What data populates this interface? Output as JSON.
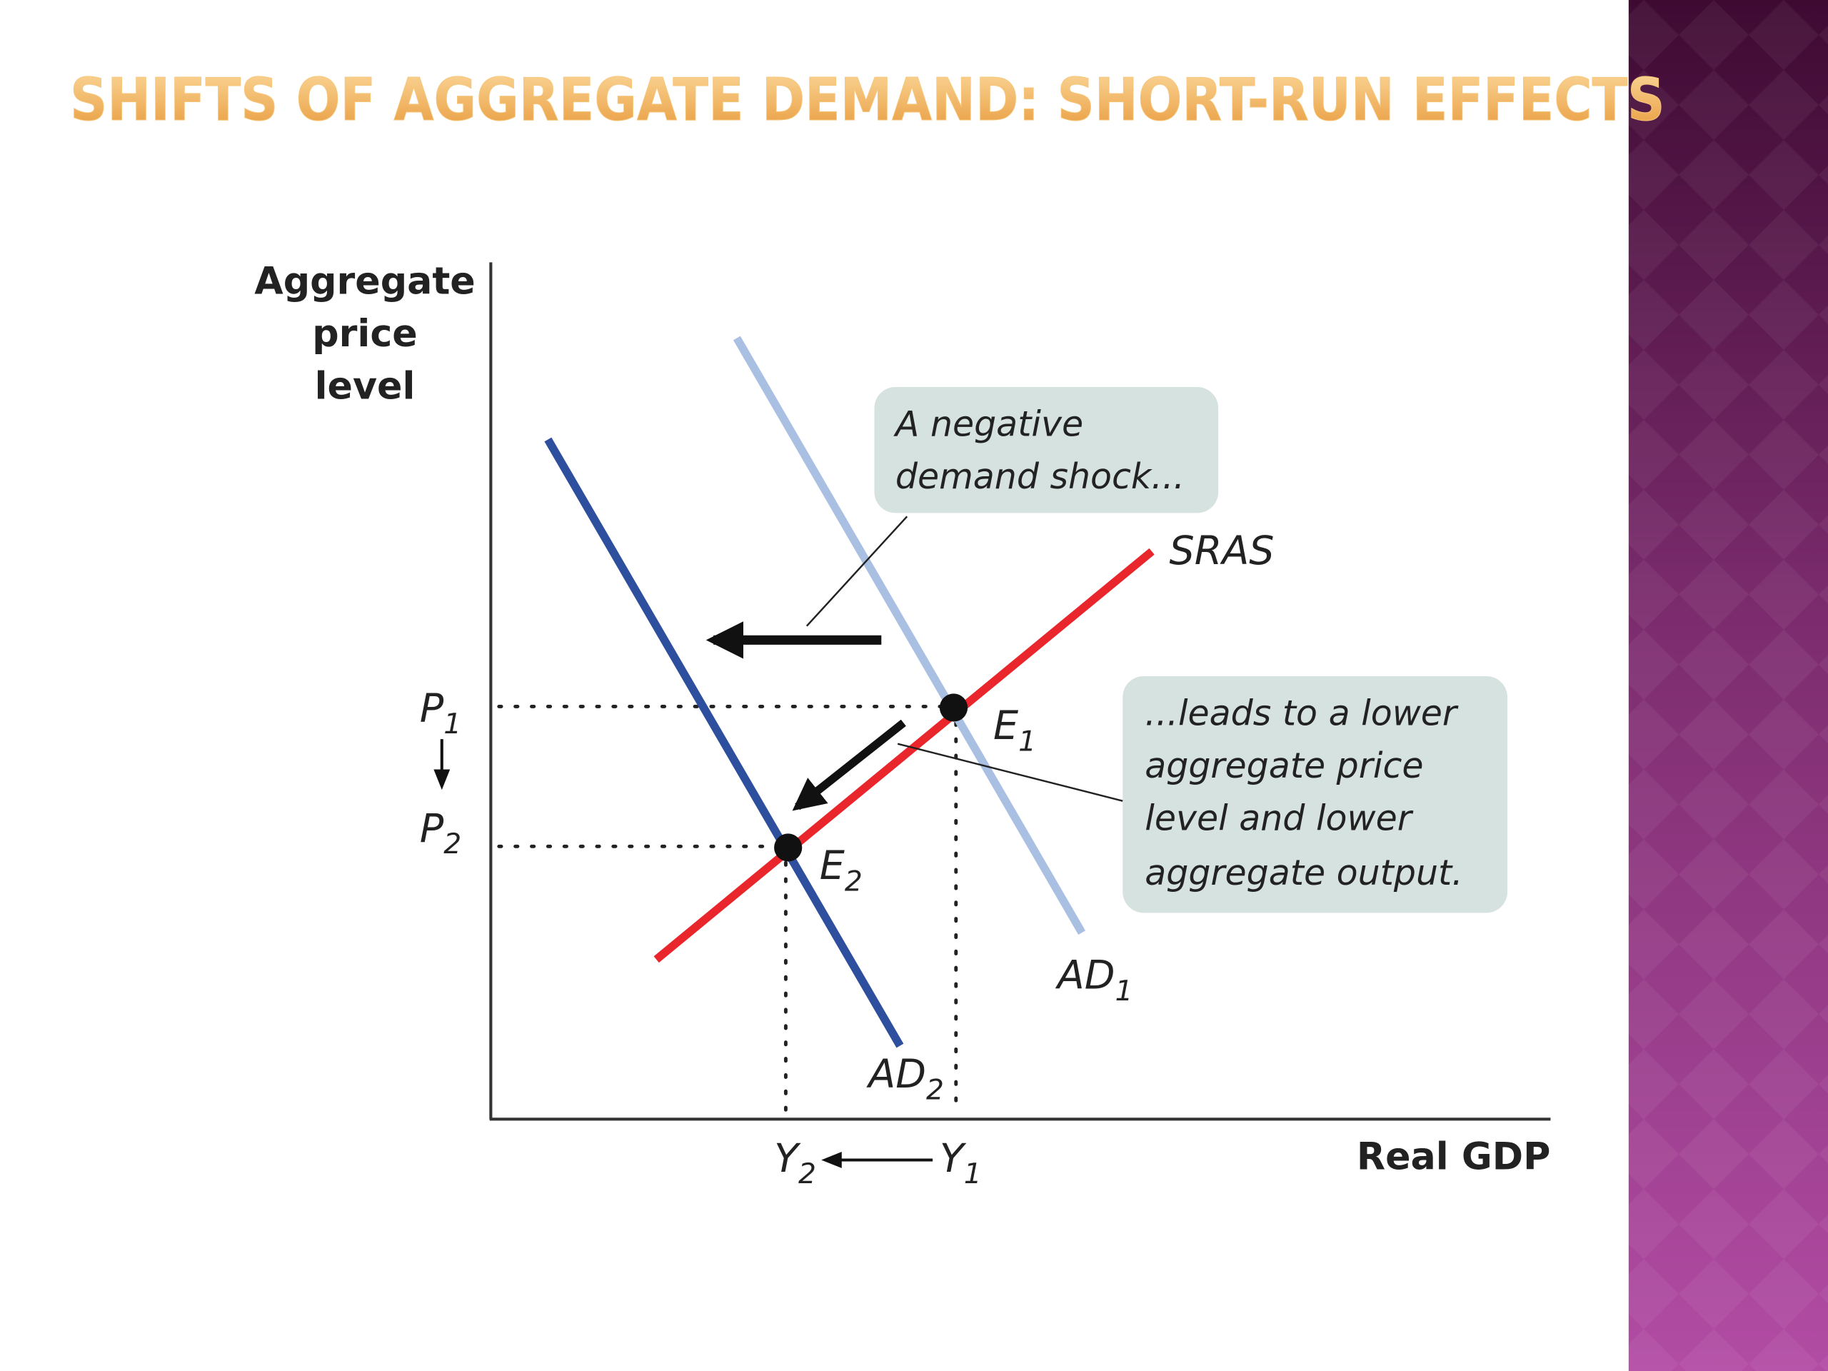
{
  "title": "SHIFTS OF AGGREGATE DEMAND: SHORT-RUN EFFECTS",
  "axes": {
    "y_label": [
      "Aggregate",
      "price",
      "level"
    ],
    "x_label": "Real GDP"
  },
  "curves": {
    "sras": "SRAS",
    "ad1": {
      "base": "AD",
      "sub": "1"
    },
    "ad2": {
      "base": "AD",
      "sub": "2"
    }
  },
  "points": {
    "e1": {
      "base": "E",
      "sub": "1"
    },
    "e2": {
      "base": "E",
      "sub": "2"
    }
  },
  "price_levels": {
    "p1": {
      "base": "P",
      "sub": "1"
    },
    "p2": {
      "base": "P",
      "sub": "2"
    }
  },
  "outputs": {
    "y1": {
      "base": "Y",
      "sub": "1"
    },
    "y2": {
      "base": "Y",
      "sub": "2"
    }
  },
  "callouts": [
    {
      "lines": [
        "A negative",
        "demand shock..."
      ]
    },
    {
      "lines": [
        "...leads to a lower",
        "aggregate price",
        "level and lower",
        "aggregate output."
      ]
    }
  ]
}
